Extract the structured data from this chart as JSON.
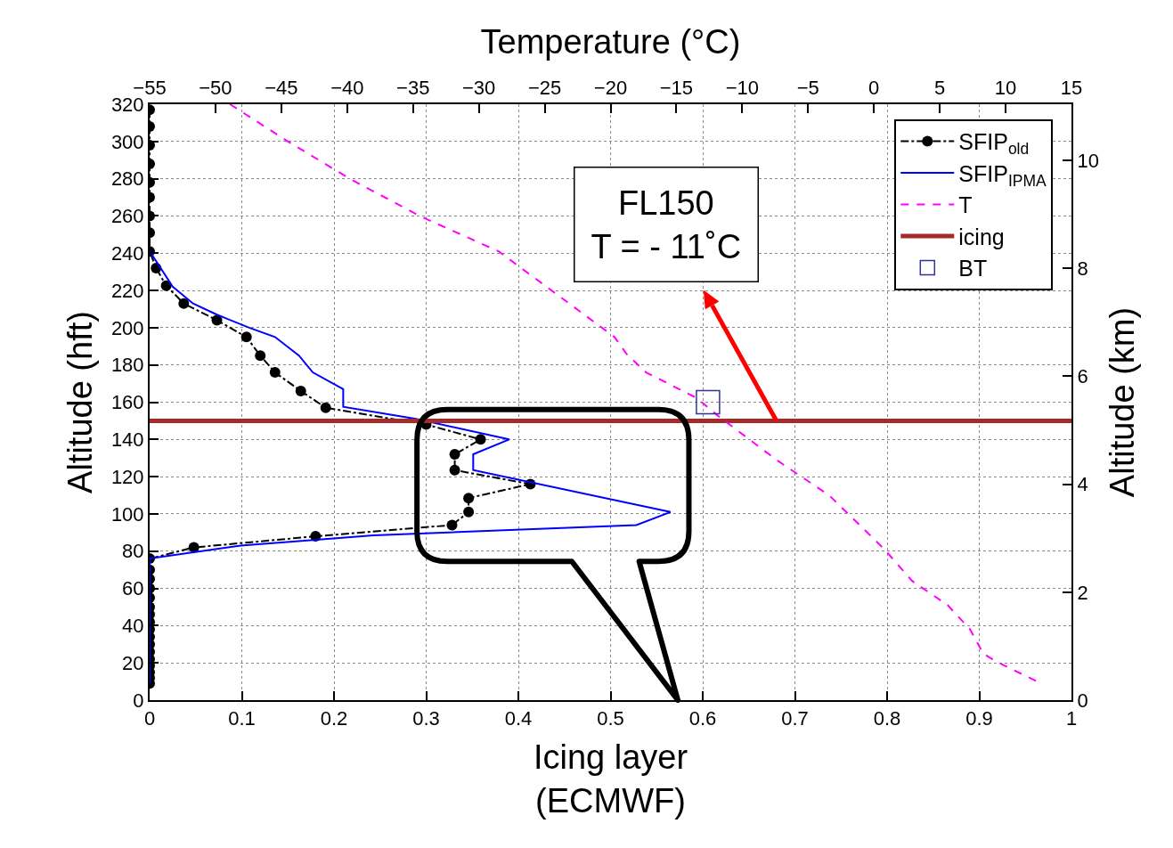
{
  "chart_data": {
    "type": "line",
    "xlabel": "Icing layer\n(ECMWF)",
    "x2label": "Temperature (°C)",
    "ylabel": "Altitude (hft)",
    "y2label": "Altitude (km)",
    "xlim": [
      0,
      1
    ],
    "xticks": [
      0,
      0.1,
      0.2,
      0.3,
      0.4,
      0.5,
      0.6,
      0.7,
      0.8,
      0.9,
      1
    ],
    "x2lim": [
      -55,
      15
    ],
    "x2ticks": [
      -55,
      -50,
      -45,
      -40,
      -35,
      -30,
      -25,
      -20,
      -15,
      -10,
      -5,
      0,
      5,
      10,
      15
    ],
    "ylim": [
      0,
      320
    ],
    "yticks": [
      0,
      20,
      40,
      60,
      80,
      100,
      120,
      140,
      160,
      180,
      200,
      220,
      240,
      260,
      280,
      300,
      320
    ],
    "y2lim": [
      0,
      11.04
    ],
    "y2ticks": [
      0,
      2,
      4,
      6,
      8,
      10
    ],
    "grid": true,
    "legend": "top right",
    "series": [
      {
        "name": "SFIP$_{old}$",
        "color": "#000000",
        "marker": "circle",
        "line_style": "dashdot",
        "x": [
          0,
          0,
          0,
          0,
          0,
          0,
          0,
          0,
          0,
          0.007,
          0.018,
          0.037,
          0.073,
          0.105,
          0.12,
          0.136,
          0.164,
          0.191,
          0.3,
          0.359,
          0.331,
          0.331,
          0.413,
          0.346,
          0.346,
          0.328,
          0.18,
          0.048,
          0,
          0,
          0,
          0,
          0,
          0,
          0,
          0,
          0,
          0,
          0,
          0,
          0,
          0,
          0,
          0,
          0
        ],
        "values": [
          317,
          308,
          298,
          288,
          278,
          270,
          260,
          251,
          241,
          232,
          222.5,
          213,
          204,
          195,
          185,
          176,
          166,
          157,
          148,
          140,
          132,
          123.5,
          116,
          108.5,
          101,
          94,
          88,
          82,
          76,
          70,
          65,
          60,
          55,
          50,
          46,
          42,
          38,
          34,
          30,
          26,
          22,
          18.5,
          15,
          12,
          9
        ]
      },
      {
        "name": "SFIP$_{IPMA}$",
        "color": "#0000ff",
        "marker": "none",
        "line_style": "solid",
        "x": [
          0,
          0.012,
          0.025,
          0.047,
          0.073,
          0.108,
          0.136,
          0.162,
          0.177,
          0.21,
          0.21,
          0.289,
          0.39,
          0.351,
          0.351,
          0.565,
          0.528,
          0.243,
          0.099,
          0,
          0
        ],
        "values": [
          241,
          232,
          222,
          213,
          207,
          200,
          195,
          185,
          176,
          167,
          157.5,
          151,
          140,
          132,
          123.5,
          101,
          94,
          88.5,
          83,
          76,
          9
        ]
      },
      {
        "name": "T",
        "axis": "x2",
        "color": "#ff00ff",
        "marker": "none",
        "line_style": "dashed",
        "x": [
          -48.9,
          -44.5,
          -39.8,
          -34.5,
          -28.5,
          -19.7,
          -18.8,
          -17.3,
          -13.4,
          -11.9,
          -7.4,
          -3.4,
          0.8,
          2.9,
          5.6,
          7.3,
          8.3,
          9.2,
          12.4
        ],
        "values": [
          320,
          300,
          280,
          260,
          241,
          195,
          186,
          176,
          162,
          153,
          129,
          110,
          81,
          64,
          51,
          38,
          25,
          21,
          10
        ]
      },
      {
        "name": "BT",
        "type": "scatter",
        "axis": "x2",
        "color": "#333399",
        "marker": "square",
        "x": [
          -12.6
        ],
        "values": [
          160
        ]
      }
    ],
    "ref_lines": [
      {
        "axis": "y",
        "value": 150,
        "label": "icing",
        "color": "#a52a2a"
      }
    ],
    "annotations": [
      {
        "text": "FL150\nT = - 11˚C",
        "x": 0.68,
        "y": 150
      }
    ]
  }
}
